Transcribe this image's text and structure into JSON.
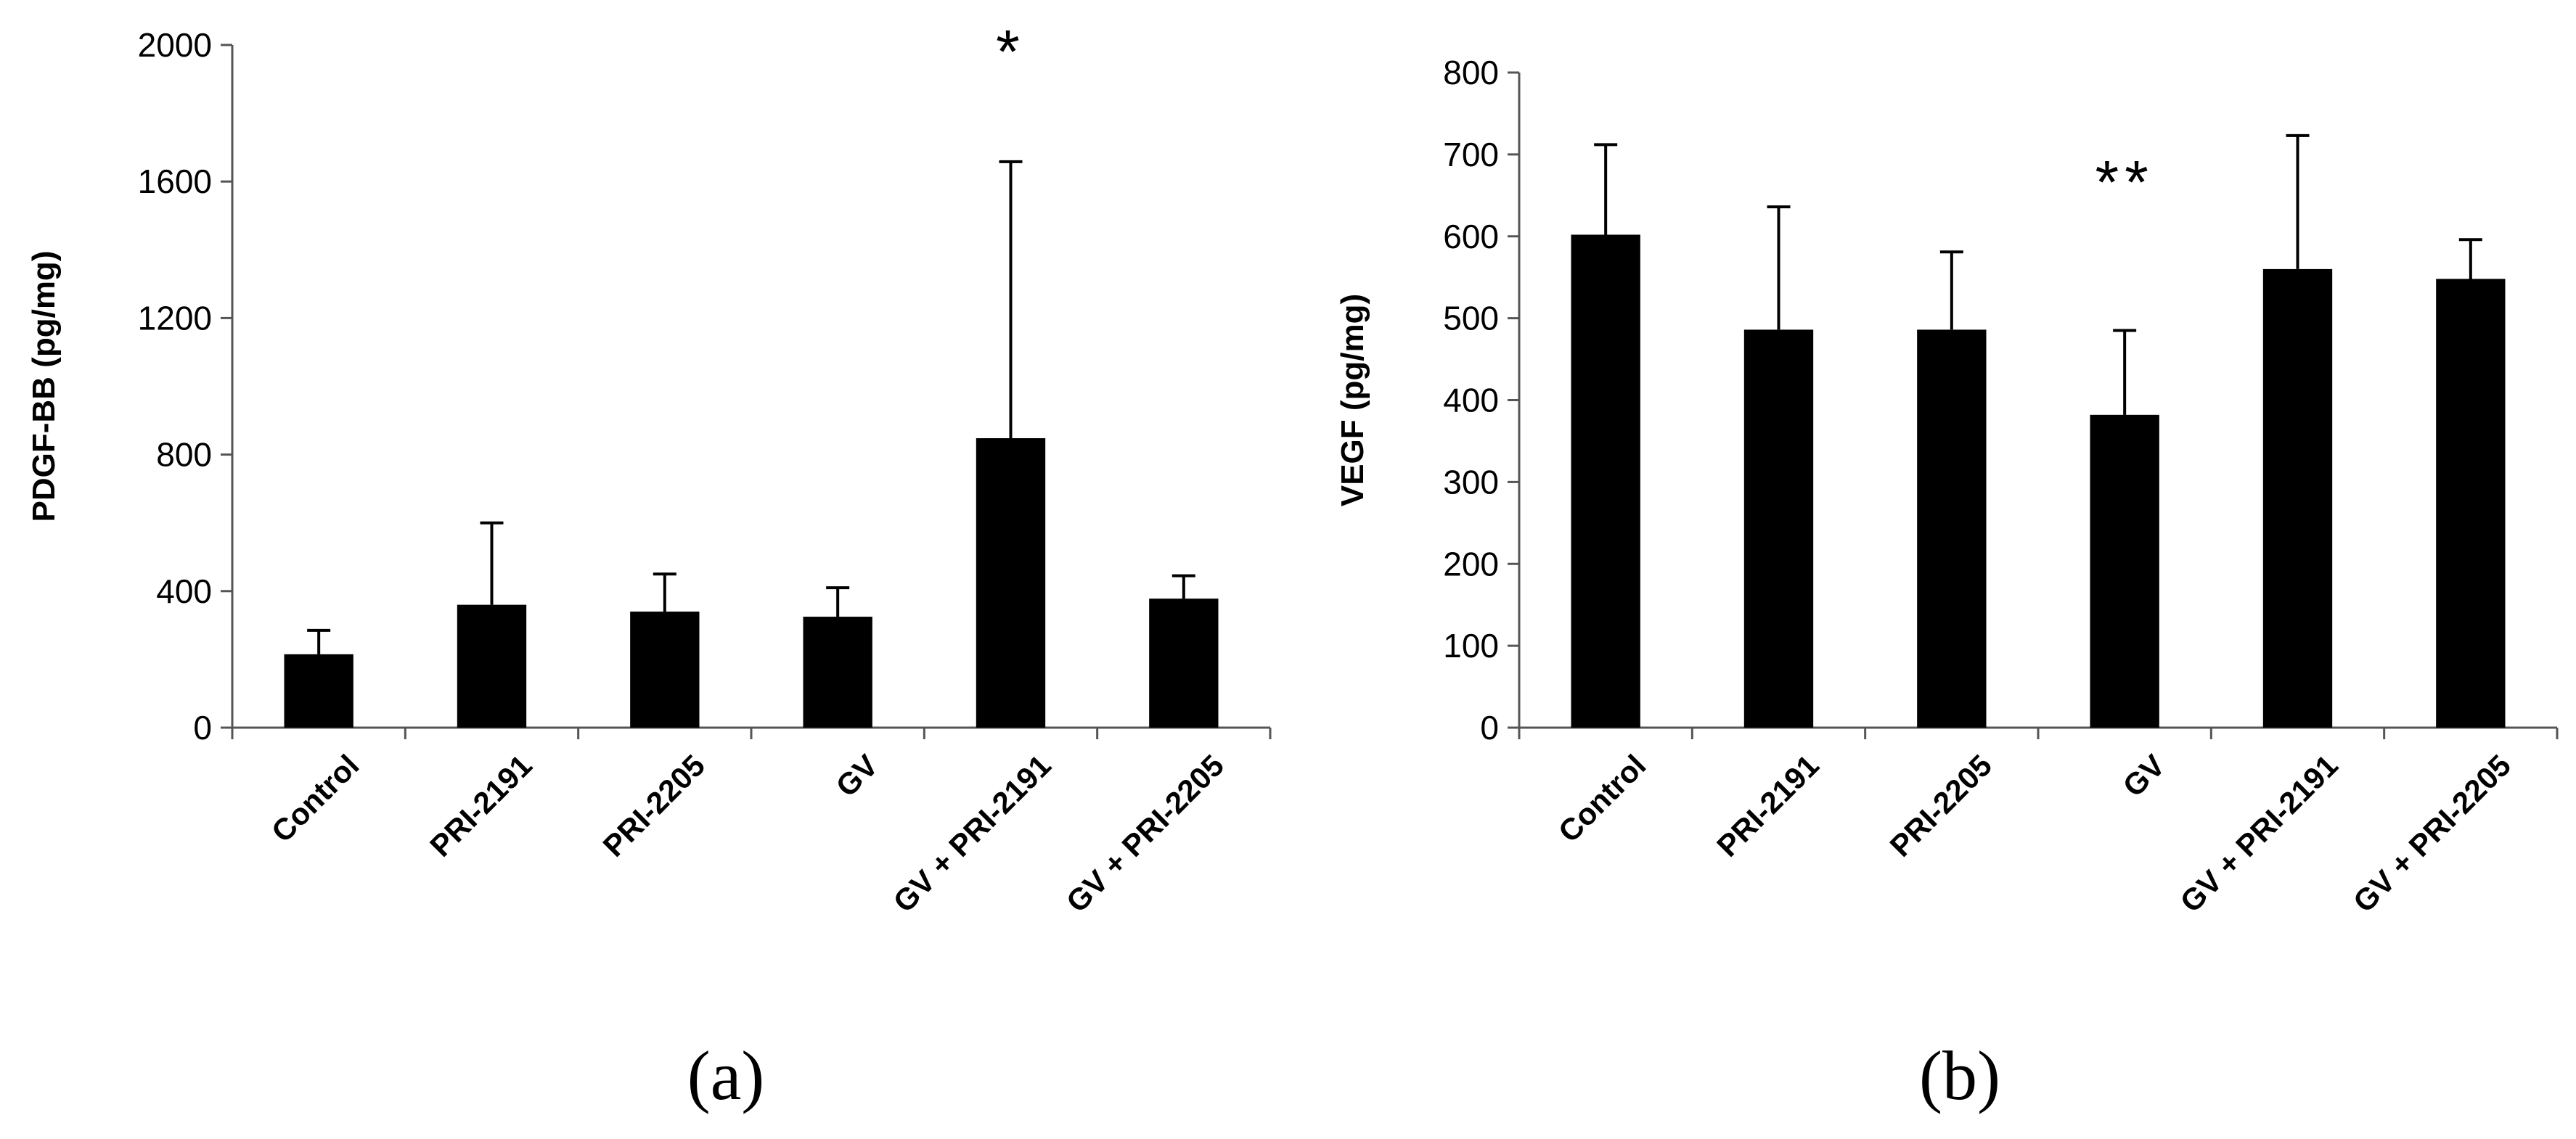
{
  "chart_data": [
    {
      "type": "bar",
      "panel_label": "(a)",
      "categories": [
        "Control",
        "PRI-2191",
        "PRI-2205",
        "GV",
        "GV + PRI-2191",
        "GV + PRI-2205"
      ],
      "values": [
        215,
        360,
        340,
        325,
        848,
        378
      ],
      "error_bars": [
        70,
        240,
        110,
        85,
        810,
        67
      ],
      "ylabel": "PDGF-BB (pg/mg)",
      "ylim": [
        0,
        2000
      ],
      "yticks": [
        0,
        400,
        800,
        1200,
        1600,
        2000
      ],
      "annotations": [
        {
          "category": "GV + PRI-2191",
          "text": "*"
        }
      ],
      "bar_color": "#000000",
      "grid": false
    },
    {
      "type": "bar",
      "panel_label": "(b)",
      "categories": [
        "Control",
        "PRI-2191",
        "PRI-2205",
        "GV",
        "GV + PRI-2191",
        "GV + PRI-2205"
      ],
      "values": [
        602,
        486,
        486,
        382,
        560,
        548
      ],
      "error_bars": [
        110,
        150,
        95,
        103,
        163,
        48
      ],
      "ylabel": "VEGF (pg/mg)",
      "ylim": [
        0,
        800
      ],
      "yticks": [
        0,
        100,
        200,
        300,
        400,
        500,
        600,
        700,
        800
      ],
      "annotations": [
        {
          "category": "GV",
          "text": "**"
        }
      ],
      "bar_color": "#000000",
      "grid": false
    }
  ]
}
